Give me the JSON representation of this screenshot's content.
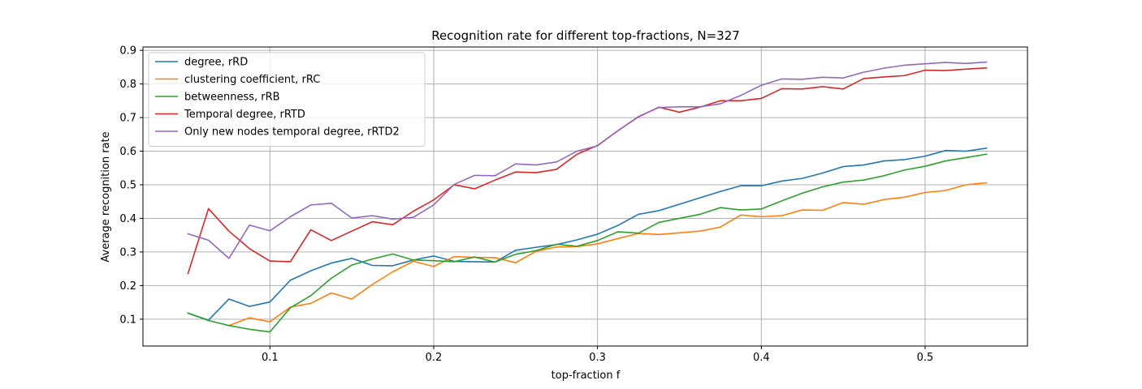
{
  "chart_data": {
    "type": "line",
    "title": "Recognition rate for different top-fractions, N=327",
    "xlabel": "top-fraction f",
    "ylabel": "Average recognition rate",
    "xlim": [
      0.0225,
      0.5625
    ],
    "ylim": [
      0.02,
      0.91
    ],
    "xticks": [
      0.1,
      0.2,
      0.3,
      0.4,
      0.5
    ],
    "xtick_labels": [
      "0.1",
      "0.2",
      "0.3",
      "0.4",
      "0.5"
    ],
    "yticks": [
      0.1,
      0.2,
      0.3,
      0.4,
      0.5,
      0.6,
      0.7,
      0.8,
      0.9
    ],
    "ytick_labels": [
      "0.1",
      "0.2",
      "0.3",
      "0.4",
      "0.5",
      "0.6",
      "0.7",
      "0.8",
      "0.9"
    ],
    "grid": true,
    "legend_position": "top-left",
    "x": [
      0.05,
      0.0625,
      0.075,
      0.0875,
      0.1,
      0.1125,
      0.125,
      0.1375,
      0.15,
      0.1625,
      0.175,
      0.1875,
      0.2,
      0.2125,
      0.225,
      0.2375,
      0.25,
      0.2625,
      0.275,
      0.2875,
      0.3,
      0.3125,
      0.325,
      0.3375,
      0.35,
      0.3625,
      0.375,
      0.3875,
      0.4,
      0.4125,
      0.425,
      0.4375,
      0.45,
      0.4625,
      0.475,
      0.4875,
      0.5,
      0.5125,
      0.525,
      0.5375
    ],
    "series": [
      {
        "name": "degree, rRD",
        "color": "#1f77b4",
        "values": [
          0.118,
          0.097,
          0.16,
          0.138,
          0.151,
          0.216,
          0.244,
          0.267,
          0.281,
          0.26,
          0.259,
          0.276,
          0.288,
          0.272,
          0.271,
          0.27,
          0.305,
          0.314,
          0.322,
          0.336,
          0.353,
          0.379,
          0.412,
          0.423,
          0.442,
          0.461,
          0.48,
          0.497,
          0.497,
          0.511,
          0.519,
          0.535,
          0.554,
          0.559,
          0.571,
          0.575,
          0.585,
          0.602,
          0.6,
          0.609
        ]
      },
      {
        "name": "clustering coefficient, rRC",
        "color": "#ff7f0e",
        "values": [
          null,
          null,
          0.081,
          0.104,
          0.092,
          0.136,
          0.147,
          0.178,
          0.16,
          0.203,
          0.241,
          0.272,
          0.257,
          0.286,
          0.284,
          0.283,
          0.268,
          0.302,
          0.315,
          0.316,
          0.324,
          0.34,
          0.355,
          0.352,
          0.357,
          0.362,
          0.374,
          0.41,
          0.405,
          0.408,
          0.425,
          0.424,
          0.447,
          0.442,
          0.456,
          0.463,
          0.477,
          0.483,
          0.5,
          0.506
        ]
      },
      {
        "name": "betweenness, rRB",
        "color": "#2ca02c",
        "values": [
          0.118,
          0.096,
          0.081,
          0.07,
          0.062,
          0.134,
          0.17,
          0.222,
          0.261,
          0.279,
          0.294,
          0.276,
          0.274,
          0.271,
          0.285,
          0.27,
          0.293,
          0.304,
          0.323,
          0.317,
          0.334,
          0.36,
          0.356,
          0.388,
          0.4,
          0.412,
          0.432,
          0.425,
          0.428,
          0.452,
          0.475,
          0.494,
          0.508,
          0.514,
          0.527,
          0.544,
          0.555,
          0.571,
          0.581,
          0.591
        ]
      },
      {
        "name": "Temporal degree, rRTD",
        "color": "#d62728",
        "values": [
          0.236,
          0.429,
          0.362,
          0.31,
          0.273,
          0.271,
          0.366,
          0.334,
          0.362,
          0.39,
          0.381,
          0.421,
          0.455,
          0.5,
          0.488,
          0.514,
          0.538,
          0.536,
          0.546,
          0.591,
          0.617,
          0.661,
          0.702,
          0.731,
          0.716,
          0.731,
          0.75,
          0.75,
          0.757,
          0.786,
          0.785,
          0.792,
          0.785,
          0.816,
          0.821,
          0.825,
          0.841,
          0.84,
          0.844,
          0.848
        ]
      },
      {
        "name": "Only new nodes temporal degree, rRTD2",
        "color": "#9467bd",
        "values": [
          0.354,
          0.335,
          0.281,
          0.38,
          0.363,
          0.405,
          0.44,
          0.445,
          0.401,
          0.408,
          0.398,
          0.403,
          0.44,
          0.501,
          0.528,
          0.527,
          0.562,
          0.559,
          0.568,
          0.6,
          0.616,
          0.661,
          0.703,
          0.73,
          0.732,
          0.732,
          0.741,
          0.766,
          0.796,
          0.815,
          0.814,
          0.82,
          0.818,
          0.835,
          0.847,
          0.856,
          0.86,
          0.864,
          0.861,
          0.865
        ]
      }
    ]
  }
}
